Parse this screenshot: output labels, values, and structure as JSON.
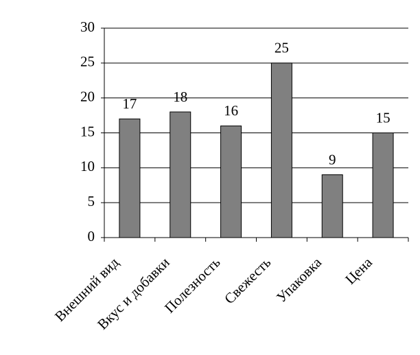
{
  "chart_data": {
    "type": "bar",
    "categories": [
      "Внешний вид",
      "Вкус и добавки",
      "Полезность",
      "Свежесть",
      "Упаковка",
      "Цена"
    ],
    "values": [
      17,
      18,
      16,
      25,
      9,
      15
    ],
    "color": "#808080",
    "ylim": [
      0,
      30
    ],
    "yticks": [
      0,
      5,
      10,
      15,
      20,
      25,
      30
    ],
    "grid": true
  }
}
